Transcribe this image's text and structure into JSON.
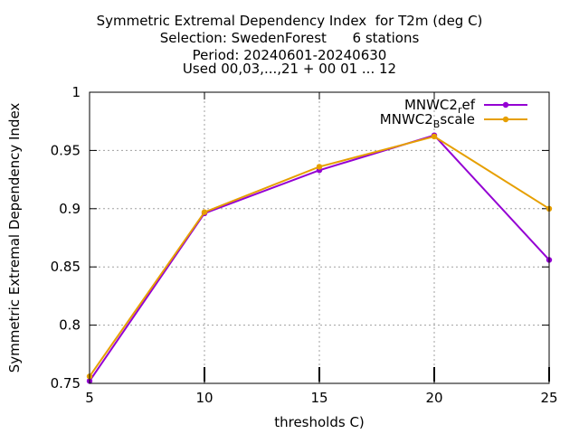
{
  "chart_data": {
    "type": "line",
    "title_lines": [
      "Symmetric Extremal Dependency Index  for T2m (deg C)",
      "Selection: SwedenForest      6 stations",
      "Period: 20240601-20240630",
      "Used 00,03,...,21 + 00 01 ... 12"
    ],
    "xlabel": "thresholds C)",
    "ylabel": "Symmetric Extremal Dependency Index",
    "x": [
      5,
      10,
      15,
      20,
      25
    ],
    "xlim": [
      5,
      25
    ],
    "ylim": [
      0.75,
      1
    ],
    "x_ticks": [
      "5",
      "10",
      "15",
      "20",
      "25"
    ],
    "y_ticks": [
      "0.75",
      "0.8",
      "0.85",
      "0.9",
      "0.95",
      "1"
    ],
    "grid": true,
    "legend_position": "top-right",
    "series": [
      {
        "name_main": "MNWC2",
        "name_sub": "r",
        "name_rest": "ef",
        "color": "#9400d3",
        "values": [
          0.752,
          0.896,
          0.933,
          0.963,
          0.856
        ]
      },
      {
        "name_main": "MNWC2",
        "name_sub": "B",
        "name_rest": "scale",
        "color": "#e69f00",
        "values": [
          0.756,
          0.897,
          0.936,
          0.962,
          0.9
        ]
      }
    ]
  }
}
